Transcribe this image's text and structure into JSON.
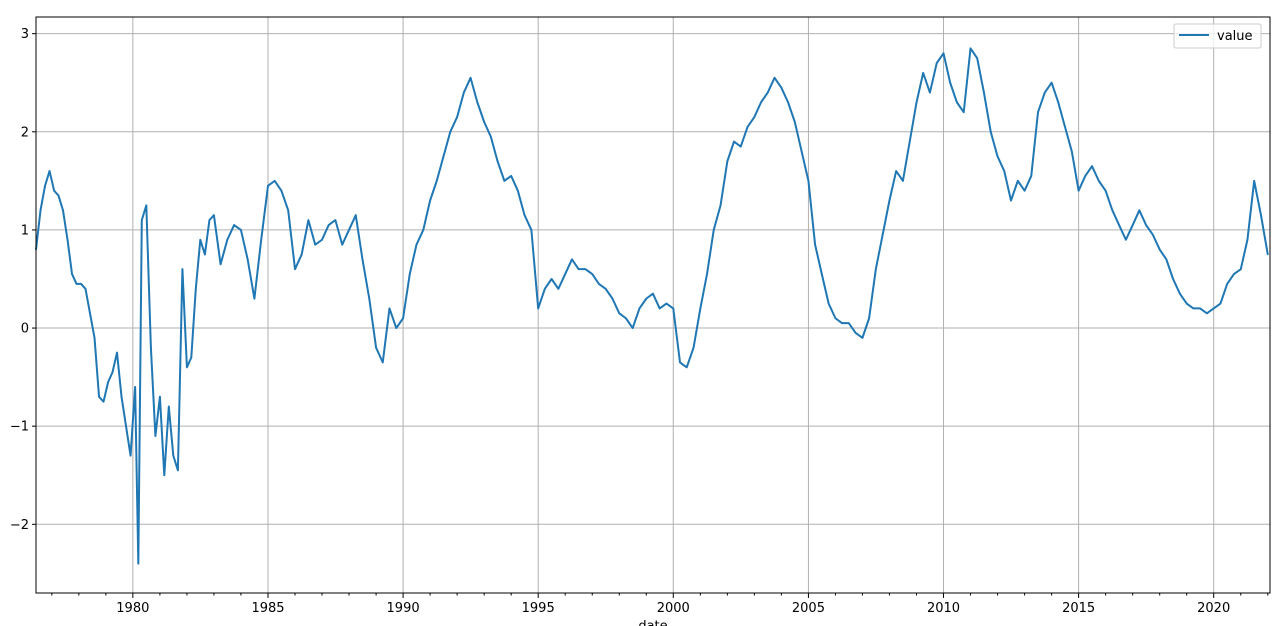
{
  "chart_data": {
    "type": "line",
    "title": "",
    "xlabel": "date",
    "ylabel": "",
    "x_type": "date",
    "xlim": [
      "1976-06-01",
      "2022-01-31"
    ],
    "ylim": [
      -2.7,
      3.17
    ],
    "x_ticks": [
      "1980",
      "1985",
      "1990",
      "1995",
      "2000",
      "2005",
      "2010",
      "2015",
      "2020"
    ],
    "y_ticks": [
      -2,
      -1,
      0,
      1,
      2,
      3
    ],
    "grid": true,
    "legend_position": "top-right",
    "line_color": "#1f77b4",
    "grid_color": "#b0b0b0",
    "series": [
      {
        "name": "value",
        "x": [
          "1976-06-01",
          "1976-08-01",
          "1976-10-01",
          "1976-12-01",
          "1977-02-01",
          "1977-04-01",
          "1977-06-01",
          "1977-08-01",
          "1977-10-01",
          "1977-12-01",
          "1978-02-01",
          "1978-04-01",
          "1978-06-01",
          "1978-08-01",
          "1978-10-01",
          "1978-12-01",
          "1979-02-01",
          "1979-04-01",
          "1979-06-01",
          "1979-08-01",
          "1979-10-01",
          "1979-12-01",
          "1980-02-01",
          "1980-03-15",
          "1980-05-01",
          "1980-07-01",
          "1980-09-01",
          "1980-11-01",
          "1981-01-01",
          "1981-03-01",
          "1981-05-01",
          "1981-07-01",
          "1981-09-01",
          "1981-11-01",
          "1982-01-01",
          "1982-03-01",
          "1982-05-01",
          "1982-07-01",
          "1982-09-01",
          "1982-11-01",
          "1983-01-01",
          "1983-04-01",
          "1983-07-01",
          "1983-10-01",
          "1984-01-01",
          "1984-04-01",
          "1984-07-01",
          "1984-10-01",
          "1985-01-01",
          "1985-04-01",
          "1985-07-01",
          "1985-10-01",
          "1986-01-01",
          "1986-04-01",
          "1986-07-01",
          "1986-10-01",
          "1987-01-01",
          "1987-04-01",
          "1987-07-01",
          "1987-10-01",
          "1988-01-01",
          "1988-04-01",
          "1988-07-01",
          "1988-10-01",
          "1989-01-01",
          "1989-04-01",
          "1989-07-01",
          "1989-10-01",
          "1990-01-01",
          "1990-04-01",
          "1990-07-01",
          "1990-10-01",
          "1991-01-01",
          "1991-04-01",
          "1991-07-01",
          "1991-10-01",
          "1992-01-01",
          "1992-04-01",
          "1992-07-01",
          "1992-10-01",
          "1993-01-01",
          "1993-04-01",
          "1993-07-01",
          "1993-10-01",
          "1994-01-01",
          "1994-04-01",
          "1994-07-01",
          "1994-10-01",
          "1995-01-01",
          "1995-04-01",
          "1995-07-01",
          "1995-10-01",
          "1996-01-01",
          "1996-04-01",
          "1996-07-01",
          "1996-10-01",
          "1997-01-01",
          "1997-04-01",
          "1997-07-01",
          "1997-10-01",
          "1998-01-01",
          "1998-04-01",
          "1998-07-01",
          "1998-10-01",
          "1999-01-01",
          "1999-04-01",
          "1999-07-01",
          "1999-10-01",
          "2000-01-01",
          "2000-04-01",
          "2000-07-01",
          "2000-10-01",
          "2001-01-01",
          "2001-04-01",
          "2001-07-01",
          "2001-10-01",
          "2002-01-01",
          "2002-04-01",
          "2002-07-01",
          "2002-10-01",
          "2003-01-01",
          "2003-04-01",
          "2003-07-01",
          "2003-10-01",
          "2004-01-01",
          "2004-04-01",
          "2004-07-01",
          "2004-10-01",
          "2005-01-01",
          "2005-04-01",
          "2005-07-01",
          "2005-10-01",
          "2006-01-01",
          "2006-04-01",
          "2006-07-01",
          "2006-10-01",
          "2007-01-01",
          "2007-04-01",
          "2007-07-01",
          "2007-10-01",
          "2008-01-01",
          "2008-04-01",
          "2008-07-01",
          "2008-10-01",
          "2009-01-01",
          "2009-04-01",
          "2009-07-01",
          "2009-10-01",
          "2010-01-01",
          "2010-04-01",
          "2010-07-01",
          "2010-10-01",
          "2011-01-01",
          "2011-04-01",
          "2011-07-01",
          "2011-10-01",
          "2012-01-01",
          "2012-04-01",
          "2012-07-01",
          "2012-10-01",
          "2013-01-01",
          "2013-04-01",
          "2013-07-01",
          "2013-10-01",
          "2014-01-01",
          "2014-04-01",
          "2014-07-01",
          "2014-10-01",
          "2015-01-01",
          "2015-04-01",
          "2015-07-01",
          "2015-10-01",
          "2016-01-01",
          "2016-04-01",
          "2016-07-01",
          "2016-10-01",
          "2017-01-01",
          "2017-04-01",
          "2017-07-01",
          "2017-10-01",
          "2018-01-01",
          "2018-04-01",
          "2018-07-01",
          "2018-10-01",
          "2019-01-01",
          "2019-04-01",
          "2019-07-01",
          "2019-10-01",
          "2020-01-01",
          "2020-04-01",
          "2020-07-01",
          "2020-10-01",
          "2021-01-01",
          "2021-04-01",
          "2021-07-01",
          "2021-10-01",
          "2022-01-01"
        ],
        "y": [
          0.8,
          1.2,
          1.45,
          1.6,
          1.4,
          1.35,
          1.2,
          0.9,
          0.55,
          0.45,
          0.45,
          0.4,
          0.15,
          -0.1,
          -0.7,
          -0.75,
          -0.55,
          -0.45,
          -0.25,
          -0.7,
          -1.0,
          -1.3,
          -0.6,
          -2.4,
          1.1,
          1.25,
          -0.2,
          -1.1,
          -0.7,
          -1.5,
          -0.8,
          -1.3,
          -1.45,
          0.6,
          -0.4,
          -0.3,
          0.4,
          0.9,
          0.75,
          1.1,
          1.15,
          0.65,
          0.9,
          1.05,
          1.0,
          0.7,
          0.3,
          0.9,
          1.45,
          1.5,
          1.4,
          1.2,
          0.6,
          0.75,
          1.1,
          0.85,
          0.9,
          1.05,
          1.1,
          0.85,
          1.0,
          1.15,
          0.7,
          0.3,
          -0.2,
          -0.35,
          0.2,
          0.0,
          0.1,
          0.55,
          0.85,
          1.0,
          1.3,
          1.5,
          1.75,
          2.0,
          2.15,
          2.4,
          2.55,
          2.3,
          2.1,
          1.95,
          1.7,
          1.5,
          1.55,
          1.4,
          1.15,
          1.0,
          0.2,
          0.4,
          0.5,
          0.4,
          0.55,
          0.7,
          0.6,
          0.6,
          0.55,
          0.45,
          0.4,
          0.3,
          0.15,
          0.1,
          0.0,
          0.2,
          0.3,
          0.35,
          0.2,
          0.25,
          0.2,
          -0.35,
          -0.4,
          -0.2,
          0.2,
          0.55,
          1.0,
          1.25,
          1.7,
          1.9,
          1.85,
          2.05,
          2.15,
          2.3,
          2.4,
          2.55,
          2.45,
          2.3,
          2.1,
          1.8,
          1.5,
          0.85,
          0.55,
          0.25,
          0.1,
          0.05,
          0.05,
          -0.05,
          -0.1,
          0.1,
          0.6,
          0.95,
          1.3,
          1.6,
          1.5,
          1.9,
          2.3,
          2.6,
          2.4,
          2.7,
          2.8,
          2.5,
          2.3,
          2.2,
          2.85,
          2.75,
          2.4,
          2.0,
          1.75,
          1.6,
          1.3,
          1.5,
          1.4,
          1.55,
          2.2,
          2.4,
          2.5,
          2.3,
          2.05,
          1.8,
          1.4,
          1.55,
          1.65,
          1.5,
          1.4,
          1.2,
          1.05,
          0.9,
          1.05,
          1.2,
          1.05,
          0.95,
          0.8,
          0.7,
          0.5,
          0.35,
          0.25,
          0.2,
          0.2,
          0.15,
          0.2,
          0.25,
          0.45,
          0.55,
          0.6,
          0.9,
          1.5,
          1.15,
          0.75
        ]
      }
    ]
  }
}
